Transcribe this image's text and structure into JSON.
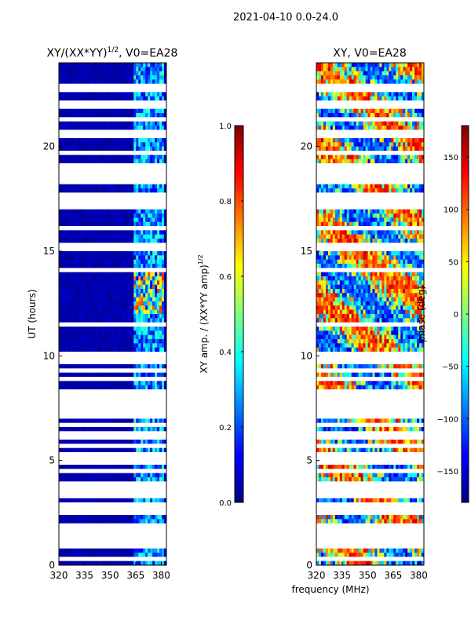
{
  "suptitle": "2021-04-10 0.0-24.0",
  "xlabel_shared": "frequency (MHz)",
  "colors": {
    "jet": [
      "#00007f",
      "#0000ff",
      "#007fff",
      "#00ffff",
      "#7fff7f",
      "#ffff00",
      "#ff7f00",
      "#ff0000",
      "#7f0000"
    ],
    "gap": "#ffffff"
  },
  "chart_data": [
    {
      "type": "heatmap",
      "title": "XY/(XX*YY)",
      "title_exp": "1/2",
      "title_suffix": ", V0=EA28",
      "xlabel": "",
      "ylabel": "UT (hours)",
      "xlim": [
        320,
        383
      ],
      "ylim": [
        0,
        24
      ],
      "xticks": [
        320,
        335,
        350,
        365,
        380
      ],
      "yticks": [
        0,
        5,
        10,
        15,
        20
      ],
      "high_band_mhz": [
        364,
        382
      ],
      "colorbar": {
        "label": "XY amp. / (XX*YY amp)",
        "label_exp": "1/2",
        "range": [
          0.0,
          1.0
        ],
        "ticks": [
          "0.0",
          "0.2",
          "0.4",
          "0.6",
          "0.8",
          "1.0"
        ]
      }
    },
    {
      "type": "heatmap",
      "title": "XY, V0=EA28",
      "xlabel": "",
      "ylabel": "",
      "xlim": [
        320,
        383
      ],
      "ylim": [
        0,
        24
      ],
      "xticks": [
        320,
        335,
        350,
        365,
        380
      ],
      "yticks": [
        0,
        5,
        10,
        15,
        20
      ],
      "colorbar": {
        "label": "phase (deg)",
        "range": [
          -180,
          180
        ],
        "ticks": [
          "−150",
          "−100",
          "−50",
          "0",
          "50",
          "100",
          "150"
        ]
      }
    }
  ],
  "flagged_hours": [
    0.3,
    0.9,
    1.2,
    1.6,
    1.9,
    2.5,
    2.8,
    3.4,
    3.6,
    3.9,
    4.5,
    5.0,
    5.3,
    5.7,
    6.2,
    6.7,
    7.2,
    7.4,
    7.8,
    8.2,
    8.9,
    9.3,
    9.8,
    10.0,
    11.5,
    14.1,
    15.2,
    16.1,
    17.2,
    17.6,
    18.4,
    18.7,
    18.9,
    19.0,
    19.7,
    20.6,
    21.3,
    22.0,
    22.8
  ]
}
